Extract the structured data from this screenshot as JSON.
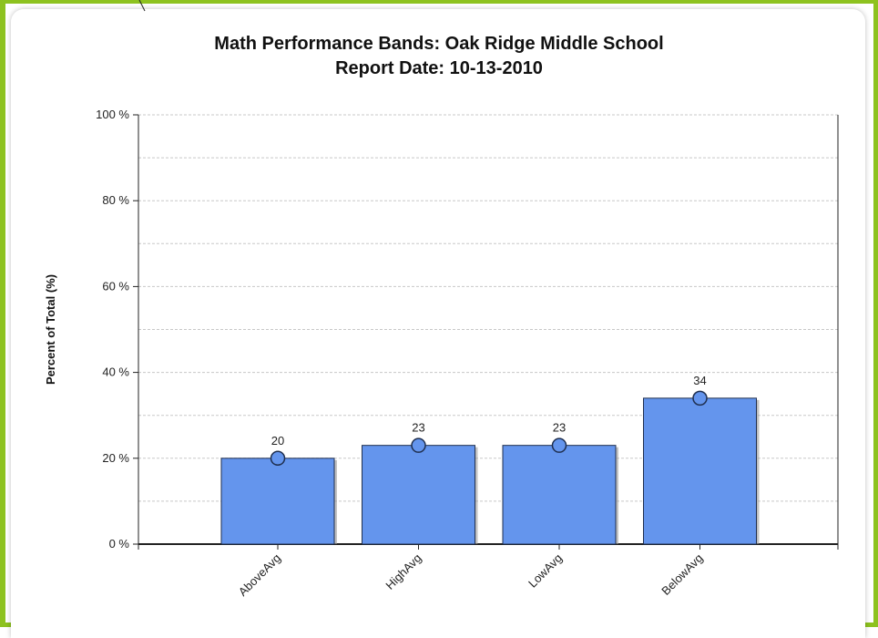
{
  "chart_data": {
    "type": "bar",
    "title": "Math Performance Bands: Oak Ridge Middle School",
    "subtitle": "Report Date: 10-13-2010",
    "xlabel": "",
    "ylabel": "Percent of Total (%)",
    "categories": [
      "AboveAvg",
      "HighAvg",
      "LowAvg",
      "BelowAvg"
    ],
    "values": [
      20,
      23,
      23,
      34
    ],
    "data_labels": [
      "20",
      "23",
      "23",
      "34"
    ],
    "ylim": [
      0,
      100
    ],
    "yticks": [
      0,
      20,
      40,
      60,
      80,
      100
    ],
    "ytick_labels": [
      "0 %",
      "20 %",
      "40 %",
      "60 %",
      "80 %",
      "100 %"
    ],
    "grid": true,
    "legend": "none",
    "bar_color": "#6495ed",
    "marker_color": "#6495ed"
  },
  "colors": {
    "frame": "#8dc21f",
    "bar": "#6495ed",
    "grid": "#cccccc"
  }
}
